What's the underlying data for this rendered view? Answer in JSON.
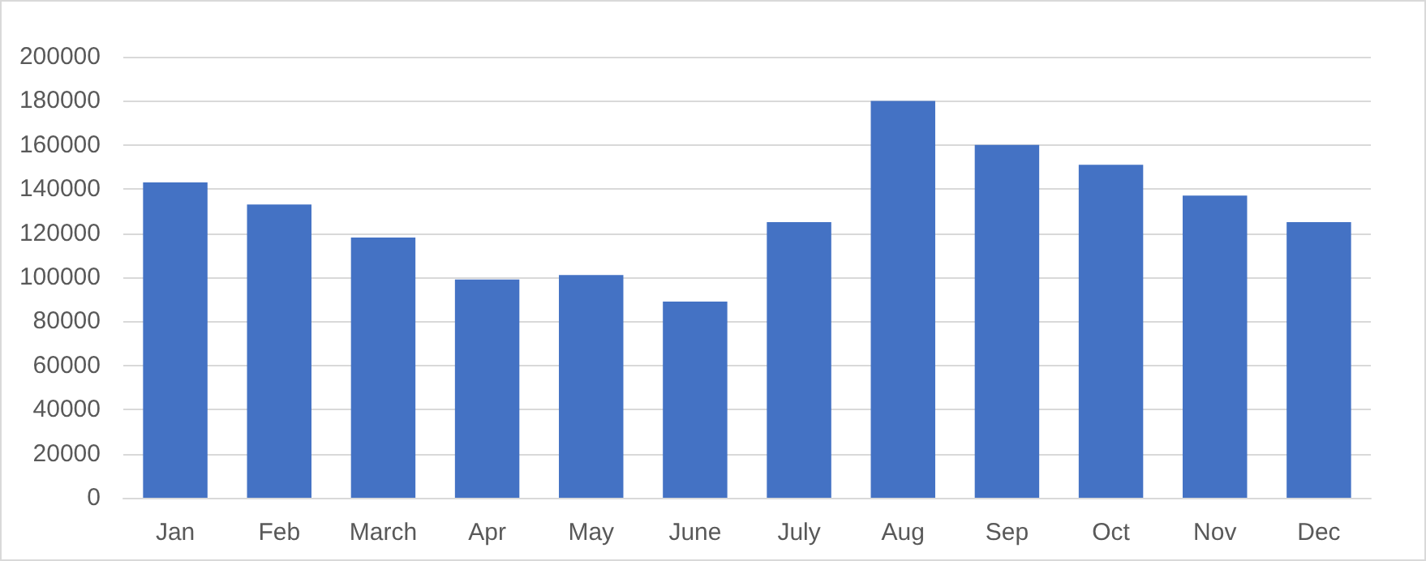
{
  "chart_data": {
    "type": "bar",
    "categories": [
      "Jan",
      "Feb",
      "March",
      "Apr",
      "May",
      "June",
      "July",
      "Aug",
      "Sep",
      "Oct",
      "Nov",
      "Dec"
    ],
    "values": [
      143000,
      133000,
      118000,
      99000,
      101000,
      89000,
      125000,
      180000,
      160000,
      151000,
      137000,
      125000
    ],
    "color": "#4472c4",
    "ylim": [
      0,
      200000
    ],
    "yticks": [
      0,
      20000,
      40000,
      60000,
      80000,
      100000,
      120000,
      140000,
      160000,
      180000,
      200000
    ],
    "grid": "y"
  }
}
